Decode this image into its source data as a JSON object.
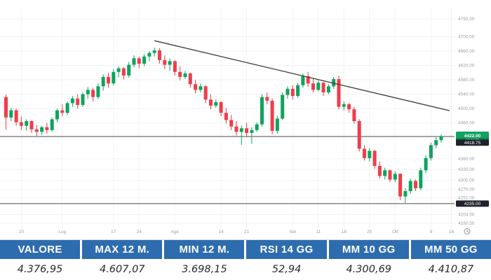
{
  "colors": {
    "up": "#0fa35f",
    "down": "#ef3d4a",
    "trendline": "#3a3a3a",
    "level_line": "#4a4a4a",
    "axis_text": "#9aa0a6",
    "grid": "#f3f3f3",
    "badge_black": "#1e222d",
    "header_blue": "#2d6cae",
    "red_marker": "#e8252b"
  },
  "chart_data": {
    "type": "candlestick",
    "title": "",
    "ylim": [
      4149,
      4783
    ],
    "grid": "on",
    "legend": "none",
    "y_axis_labels": [
      {
        "v": 4750,
        "t": "4750.00"
      },
      {
        "v": 4700,
        "t": "4700.00"
      },
      {
        "v": 4660,
        "t": "4660.00"
      },
      {
        "v": 4620,
        "t": "4620.00"
      },
      {
        "v": 4580,
        "t": "4580.00"
      },
      {
        "v": 4540,
        "t": "4540.00"
      },
      {
        "v": 4500,
        "t": "4500.00"
      },
      {
        "v": 4460,
        "t": "4460.00"
      },
      {
        "v": 4360,
        "t": "4360.00"
      },
      {
        "v": 4330,
        "t": "4330.00"
      },
      {
        "v": 4300,
        "t": "4300.00"
      },
      {
        "v": 4275,
        "t": "4275.00"
      },
      {
        "v": 4251,
        "t": "4251.00"
      },
      {
        "v": 4204.5,
        "t": "4204.50"
      },
      {
        "v": 4180.5,
        "t": "4180.50"
      }
    ],
    "x_ticks": [
      {
        "label": "20",
        "i": 3
      },
      {
        "label": "Lug",
        "i": 11
      },
      {
        "label": "17",
        "i": 21
      },
      {
        "label": "24",
        "i": 26
      },
      {
        "label": "Ago",
        "i": 33
      },
      {
        "label": "14",
        "i": 42
      },
      {
        "label": "21",
        "i": 47
      },
      {
        "label": "Set",
        "i": 56
      },
      {
        "label": "11",
        "i": 61
      },
      {
        "label": "18",
        "i": 66
      },
      {
        "label": "25",
        "i": 71
      },
      {
        "label": "Ott",
        "i": 76
      },
      {
        "label": "9",
        "i": 83
      },
      {
        "label": "16",
        "i": 87
      }
    ],
    "levels": [
      {
        "price": 4422,
        "line": true,
        "badge": "green",
        "label": "4422.00",
        "sublabel": "16:04:25"
      },
      {
        "price": 4405,
        "line": false,
        "badge": "black",
        "label": "4418.75",
        "sublabel": ""
      },
      {
        "price": 4235,
        "line": true,
        "badge": "black",
        "label": "4235.00",
        "sublabel": ""
      }
    ],
    "trendline": {
      "i1": 29,
      "p1": 4689,
      "i2": 87,
      "p2": 4494
    },
    "candles": [
      [
        4532,
        4540,
        4441,
        4475
      ],
      [
        4475,
        4502,
        4465,
        4495
      ],
      [
        4495,
        4500,
        4452,
        4462
      ],
      [
        4462,
        4478,
        4440,
        4452
      ],
      [
        4452,
        4470,
        4438,
        4465
      ],
      [
        4465,
        4468,
        4432,
        4442
      ],
      [
        4442,
        4455,
        4424,
        4435
      ],
      [
        4435,
        4452,
        4426,
        4448
      ],
      [
        4448,
        4460,
        4430,
        4440
      ],
      [
        4440,
        4475,
        4436,
        4470
      ],
      [
        4470,
        4500,
        4462,
        4495
      ],
      [
        4495,
        4512,
        4478,
        4488
      ],
      [
        4488,
        4520,
        4482,
        4515
      ],
      [
        4515,
        4535,
        4505,
        4528
      ],
      [
        4528,
        4540,
        4500,
        4510
      ],
      [
        4510,
        4545,
        4505,
        4540
      ],
      [
        4540,
        4560,
        4528,
        4552
      ],
      [
        4552,
        4558,
        4520,
        4532
      ],
      [
        4532,
        4570,
        4526,
        4562
      ],
      [
        4562,
        4595,
        4550,
        4588
      ],
      [
        4588,
        4600,
        4558,
        4570
      ],
      [
        4570,
        4610,
        4565,
        4602
      ],
      [
        4602,
        4618,
        4588,
        4612
      ],
      [
        4612,
        4615,
        4580,
        4592
      ],
      [
        4592,
        4630,
        4586,
        4622
      ],
      [
        4622,
        4648,
        4615,
        4640
      ],
      [
        4640,
        4645,
        4612,
        4625
      ],
      [
        4625,
        4652,
        4618,
        4645
      ],
      [
        4645,
        4660,
        4632,
        4655
      ],
      [
        4655,
        4670,
        4645,
        4662
      ],
      [
        4662,
        4668,
        4625,
        4635
      ],
      [
        4635,
        4648,
        4610,
        4622
      ],
      [
        4622,
        4640,
        4605,
        4632
      ],
      [
        4632,
        4635,
        4592,
        4602
      ],
      [
        4602,
        4618,
        4578,
        4588
      ],
      [
        4588,
        4605,
        4582,
        4598
      ],
      [
        4598,
        4600,
        4558,
        4568
      ],
      [
        4568,
        4580,
        4542,
        4552
      ],
      [
        4552,
        4570,
        4545,
        4562
      ],
      [
        4562,
        4565,
        4515,
        4525
      ],
      [
        4525,
        4540,
        4498,
        4508
      ],
      [
        4508,
        4525,
        4502,
        4518
      ],
      [
        4518,
        4520,
        4478,
        4488
      ],
      [
        4488,
        4502,
        4458,
        4468
      ],
      [
        4468,
        4482,
        4440,
        4450
      ],
      [
        4450,
        4465,
        4425,
        4435
      ],
      [
        4435,
        4452,
        4399,
        4445
      ],
      [
        4445,
        4460,
        4420,
        4432
      ],
      [
        4432,
        4448,
        4402,
        4440
      ],
      [
        4440,
        4462,
        4435,
        4456
      ],
      [
        4456,
        4540,
        4450,
        4532
      ],
      [
        4532,
        4545,
        4512,
        4522
      ],
      [
        4522,
        4528,
        4428,
        4438
      ],
      [
        4438,
        4480,
        4430,
        4472
      ],
      [
        4472,
        4545,
        4468,
        4538
      ],
      [
        4538,
        4562,
        4528,
        4555
      ],
      [
        4555,
        4565,
        4525,
        4535
      ],
      [
        4535,
        4572,
        4530,
        4565
      ],
      [
        4565,
        4598,
        4558,
        4590
      ],
      [
        4590,
        4602,
        4560,
        4570
      ],
      [
        4570,
        4585,
        4545,
        4552
      ],
      [
        4552,
        4578,
        4548,
        4572
      ],
      [
        4572,
        4575,
        4535,
        4545
      ],
      [
        4545,
        4568,
        4540,
        4562
      ],
      [
        4562,
        4588,
        4555,
        4582
      ],
      [
        4582,
        4592,
        4498,
        4505
      ],
      [
        4505,
        4520,
        4495,
        4512
      ],
      [
        4512,
        4515,
        4488,
        4498
      ],
      [
        4498,
        4505,
        4458,
        4465
      ],
      [
        4465,
        4470,
        4380,
        4388
      ],
      [
        4388,
        4398,
        4355,
        4362
      ],
      [
        4362,
        4390,
        4352,
        4382
      ],
      [
        4382,
        4385,
        4332,
        4340
      ],
      [
        4340,
        4352,
        4305,
        4312
      ],
      [
        4312,
        4335,
        4302,
        4328
      ],
      [
        4328,
        4330,
        4295,
        4302
      ],
      [
        4302,
        4325,
        4295,
        4318
      ],
      [
        4318,
        4320,
        4245,
        4255
      ],
      [
        4255,
        4278,
        4237,
        4270
      ],
      [
        4270,
        4305,
        4262,
        4298
      ],
      [
        4298,
        4302,
        4270,
        4278
      ],
      [
        4278,
        4335,
        4272,
        4328
      ],
      [
        4328,
        4370,
        4320,
        4362
      ],
      [
        4362,
        4405,
        4355,
        4398
      ],
      [
        4398,
        4420,
        4390,
        4412
      ],
      [
        4412,
        4428,
        4405,
        4422
      ]
    ]
  },
  "table": {
    "columns": [
      {
        "header": "VALORE",
        "value": "4.376,95"
      },
      {
        "header": "MAX 12 M.",
        "value": "4.607,07"
      },
      {
        "header": "MIN 12 M.",
        "value": "3.698,15"
      },
      {
        "header": "RSI 14 GG",
        "value": "52,94"
      },
      {
        "header": "MM 10 GG",
        "value": "4.300,69"
      },
      {
        "header": "MM 50 GG",
        "value": "4.410,87"
      }
    ]
  }
}
